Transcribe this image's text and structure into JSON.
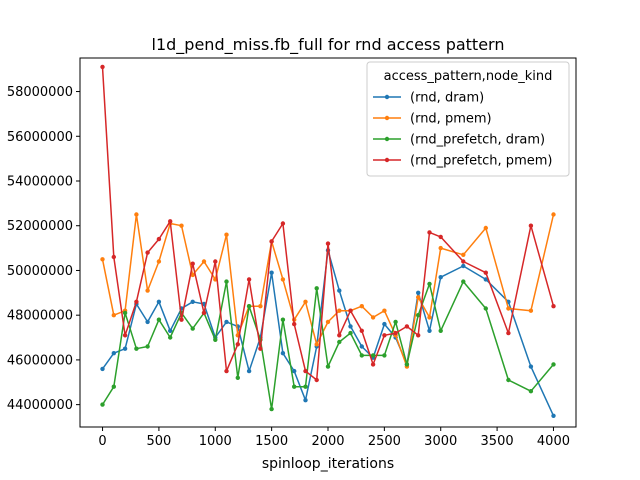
{
  "chart_data": {
    "type": "line",
    "title": "l1d_pend_miss.fb_full for rnd access pattern",
    "xlabel": "spinloop_iterations",
    "ylabel": "",
    "xlim": [
      -200,
      4200
    ],
    "ylim": [
      43000000,
      59500000
    ],
    "xticks": [
      0,
      500,
      1000,
      1500,
      2000,
      2500,
      3000,
      3500,
      4000
    ],
    "yticks": [
      44000000,
      46000000,
      48000000,
      50000000,
      52000000,
      54000000,
      56000000,
      58000000
    ],
    "legend": {
      "title": "access_pattern,node_kind",
      "position": "top-right"
    },
    "series": [
      {
        "name": "(rnd, dram)",
        "color": "#1f77b4",
        "points": [
          [
            0,
            45600000
          ],
          [
            100,
            46300000
          ],
          [
            200,
            46500000
          ],
          [
            300,
            48500000
          ],
          [
            400,
            47700000
          ],
          [
            500,
            48600000
          ],
          [
            600,
            47300000
          ],
          [
            700,
            48300000
          ],
          [
            800,
            48600000
          ],
          [
            900,
            48500000
          ],
          [
            1000,
            47000000
          ],
          [
            1100,
            47700000
          ],
          [
            1200,
            47500000
          ],
          [
            1300,
            45500000
          ],
          [
            1400,
            47000000
          ],
          [
            1500,
            49900000
          ],
          [
            1600,
            46300000
          ],
          [
            1700,
            45500000
          ],
          [
            1800,
            44200000
          ],
          [
            1900,
            46600000
          ],
          [
            2000,
            50900000
          ],
          [
            2100,
            49100000
          ],
          [
            2200,
            47500000
          ],
          [
            2300,
            46600000
          ],
          [
            2400,
            46100000
          ],
          [
            2500,
            47600000
          ],
          [
            2600,
            47000000
          ],
          [
            2700,
            45800000
          ],
          [
            2800,
            49000000
          ],
          [
            2900,
            47300000
          ],
          [
            3000,
            49700000
          ],
          [
            3200,
            50200000
          ],
          [
            3400,
            49600000
          ],
          [
            3600,
            48600000
          ],
          [
            3800,
            45700000
          ],
          [
            4000,
            43500000
          ]
        ]
      },
      {
        "name": "(rnd, pmem)",
        "color": "#ff7f0e",
        "points": [
          [
            0,
            50500000
          ],
          [
            100,
            48000000
          ],
          [
            200,
            48200000
          ],
          [
            300,
            52500000
          ],
          [
            400,
            49100000
          ],
          [
            500,
            50400000
          ],
          [
            600,
            52100000
          ],
          [
            700,
            52000000
          ],
          [
            800,
            49800000
          ],
          [
            900,
            50400000
          ],
          [
            1000,
            49600000
          ],
          [
            1100,
            51600000
          ],
          [
            1200,
            47100000
          ],
          [
            1300,
            48400000
          ],
          [
            1400,
            48400000
          ],
          [
            1500,
            51300000
          ],
          [
            1600,
            49600000
          ],
          [
            1700,
            47800000
          ],
          [
            1800,
            48600000
          ],
          [
            1900,
            46700000
          ],
          [
            2000,
            47700000
          ],
          [
            2100,
            48200000
          ],
          [
            2200,
            48200000
          ],
          [
            2300,
            48400000
          ],
          [
            2400,
            47900000
          ],
          [
            2500,
            48200000
          ],
          [
            2600,
            47100000
          ],
          [
            2700,
            45700000
          ],
          [
            2800,
            48800000
          ],
          [
            2900,
            47900000
          ],
          [
            3000,
            51000000
          ],
          [
            3200,
            50700000
          ],
          [
            3400,
            51900000
          ],
          [
            3600,
            48300000
          ],
          [
            3800,
            48200000
          ],
          [
            4000,
            52500000
          ]
        ]
      },
      {
        "name": "(rnd_prefetch, dram)",
        "color": "#2ca02c",
        "points": [
          [
            0,
            44000000
          ],
          [
            100,
            44800000
          ],
          [
            200,
            48100000
          ],
          [
            300,
            46500000
          ],
          [
            400,
            46600000
          ],
          [
            500,
            47800000
          ],
          [
            600,
            47000000
          ],
          [
            700,
            48100000
          ],
          [
            800,
            47400000
          ],
          [
            900,
            48100000
          ],
          [
            1000,
            46900000
          ],
          [
            1100,
            49500000
          ],
          [
            1200,
            45200000
          ],
          [
            1300,
            48400000
          ],
          [
            1400,
            46900000
          ],
          [
            1500,
            43800000
          ],
          [
            1600,
            47800000
          ],
          [
            1700,
            44800000
          ],
          [
            1800,
            44800000
          ],
          [
            1900,
            49200000
          ],
          [
            2000,
            45700000
          ],
          [
            2100,
            46800000
          ],
          [
            2200,
            47200000
          ],
          [
            2300,
            46200000
          ],
          [
            2400,
            46200000
          ],
          [
            2500,
            46200000
          ],
          [
            2600,
            47700000
          ],
          [
            2700,
            45800000
          ],
          [
            2800,
            48000000
          ],
          [
            2900,
            49400000
          ],
          [
            3000,
            47300000
          ],
          [
            3200,
            49500000
          ],
          [
            3400,
            48300000
          ],
          [
            3600,
            45100000
          ],
          [
            3800,
            44600000
          ],
          [
            4000,
            45800000
          ]
        ]
      },
      {
        "name": "(rnd_prefetch, pmem)",
        "color": "#d62728",
        "points": [
          [
            0,
            59100000
          ],
          [
            100,
            50600000
          ],
          [
            200,
            47100000
          ],
          [
            300,
            48600000
          ],
          [
            400,
            50800000
          ],
          [
            500,
            51400000
          ],
          [
            600,
            52200000
          ],
          [
            700,
            47800000
          ],
          [
            800,
            50300000
          ],
          [
            900,
            48100000
          ],
          [
            1000,
            50400000
          ],
          [
            1100,
            45500000
          ],
          [
            1200,
            46700000
          ],
          [
            1300,
            49600000
          ],
          [
            1400,
            46500000
          ],
          [
            1500,
            51300000
          ],
          [
            1600,
            52100000
          ],
          [
            1700,
            47600000
          ],
          [
            1800,
            45500000
          ],
          [
            1900,
            45100000
          ],
          [
            2000,
            51200000
          ],
          [
            2100,
            47100000
          ],
          [
            2200,
            48200000
          ],
          [
            2300,
            47300000
          ],
          [
            2400,
            45800000
          ],
          [
            2500,
            47100000
          ],
          [
            2600,
            47200000
          ],
          [
            2700,
            47500000
          ],
          [
            2800,
            47100000
          ],
          [
            2900,
            51700000
          ],
          [
            3000,
            51500000
          ],
          [
            3200,
            50400000
          ],
          [
            3400,
            49900000
          ],
          [
            3600,
            47200000
          ],
          [
            3800,
            52000000
          ],
          [
            4000,
            48400000
          ]
        ]
      }
    ],
    "grid": false
  }
}
